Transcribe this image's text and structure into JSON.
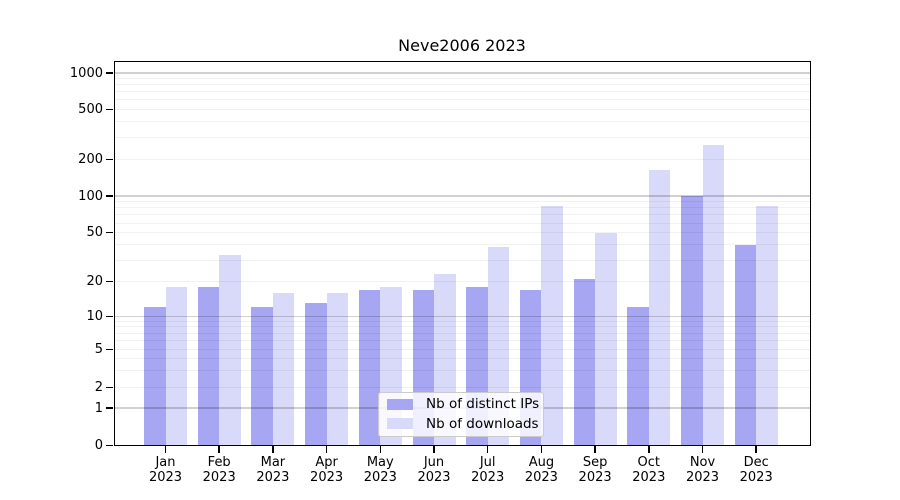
{
  "chart_data": {
    "type": "bar",
    "title": "Neve2006 2023",
    "categories": [
      "Jan",
      "Feb",
      "Mar",
      "Apr",
      "May",
      "Jun",
      "Jul",
      "Aug",
      "Sep",
      "Oct",
      "Nov",
      "Dec"
    ],
    "category_year": "2023",
    "series": [
      {
        "name": "Nb of distinct IPs",
        "color": "#a6a6f2",
        "values": [
          12,
          18,
          12,
          13,
          17,
          17,
          18,
          17,
          21,
          12,
          100,
          40
        ]
      },
      {
        "name": "Nb of downloads",
        "color": "#d9d9fa",
        "values": [
          18,
          33,
          16,
          16,
          18,
          23,
          38,
          83,
          50,
          163,
          258,
          83
        ]
      }
    ],
    "yscale": "log-like",
    "ytick_labels": [
      "0",
      "1",
      "2",
      "5",
      "10",
      "20",
      "50",
      "100",
      "200",
      "500",
      "1000"
    ],
    "ylim": [
      0,
      1200
    ],
    "grid": true,
    "legend_position": "lower center"
  }
}
